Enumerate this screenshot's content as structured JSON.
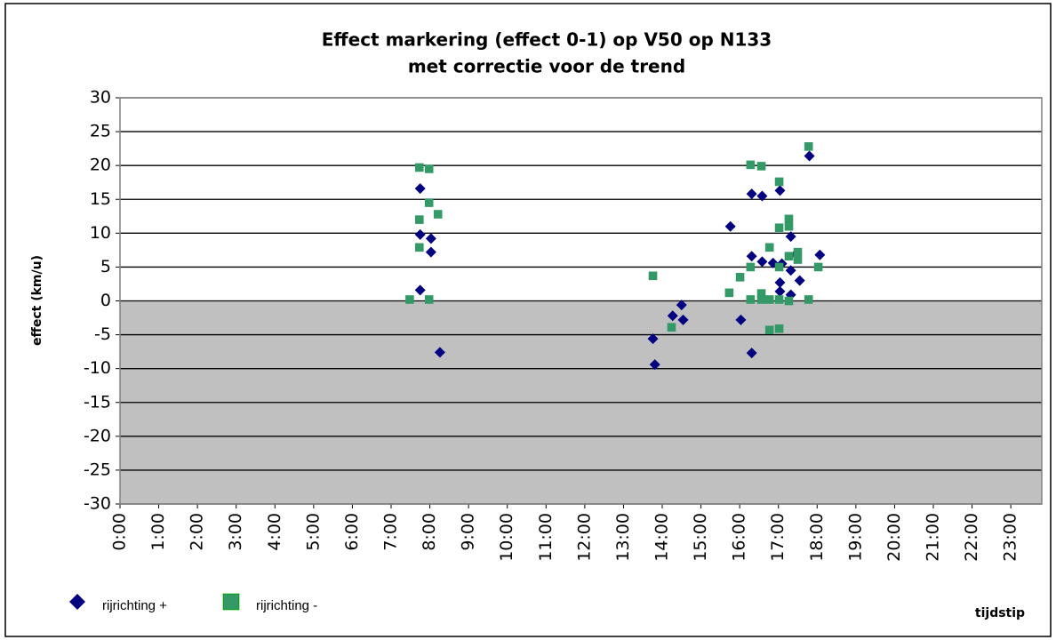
{
  "chart_data": {
    "type": "scatter",
    "title": [
      "Effect markering (effect 0-1) op V50 op N133",
      "met correctie voor de trend"
    ],
    "y_label": "effect (km/u)",
    "x_label": "tijdstip",
    "xlim": [
      0,
      23.8
    ],
    "ylim": [
      -30,
      30
    ],
    "yticks": [
      -30,
      -25,
      -20,
      -15,
      -10,
      -5,
      0,
      5,
      10,
      15,
      20,
      25,
      30
    ],
    "xticks": [
      {
        "value": 0,
        "label": "0:00"
      },
      {
        "value": 1,
        "label": "1:00"
      },
      {
        "value": 2,
        "label": "2:00"
      },
      {
        "value": 3,
        "label": "3:00"
      },
      {
        "value": 4,
        "label": "4:00"
      },
      {
        "value": 5,
        "label": "5:00"
      },
      {
        "value": 6,
        "label": "6:00"
      },
      {
        "value": 7,
        "label": "7:00"
      },
      {
        "value": 8,
        "label": "8:00"
      },
      {
        "value": 9,
        "label": "9:00"
      },
      {
        "value": 10,
        "label": "10:00"
      },
      {
        "value": 11,
        "label": "11:00"
      },
      {
        "value": 12,
        "label": "12:00"
      },
      {
        "value": 13,
        "label": "13:00"
      },
      {
        "value": 14,
        "label": "14:00"
      },
      {
        "value": 15,
        "label": "15:00"
      },
      {
        "value": 16,
        "label": "16:00"
      },
      {
        "value": 17,
        "label": "17:00"
      },
      {
        "value": 18,
        "label": "18:00"
      },
      {
        "value": 19,
        "label": "19:00"
      },
      {
        "value": 20,
        "label": "20:00"
      },
      {
        "value": 21,
        "label": "21:00"
      },
      {
        "value": 22,
        "label": "22:00"
      },
      {
        "value": 23,
        "label": "23:00"
      }
    ],
    "grid": true,
    "series": [
      {
        "name": "rijrichting +",
        "color": "#000080",
        "marker": "diamond",
        "x": [
          7.75,
          7.75,
          8.03,
          8.03,
          7.75,
          8.26,
          13.76,
          13.81,
          14.27,
          14.54,
          14.5,
          15.76,
          16.03,
          16.31,
          16.58,
          16.31,
          16.31,
          16.58,
          16.86,
          17.09,
          17.04,
          17.04,
          17.04,
          17.32,
          17.32,
          17.32,
          17.55,
          17.45,
          17.8,
          18.07
        ],
        "values": [
          16.6,
          9.8,
          9.2,
          7.2,
          1.6,
          -7.6,
          -5.6,
          -9.4,
          -2.2,
          -2.8,
          -0.6,
          11,
          -2.8,
          15.8,
          15.5,
          6.6,
          -7.7,
          5.8,
          5.6,
          5.5,
          16.3,
          2.7,
          1.4,
          9.5,
          4.5,
          0.9,
          3.0,
          6.9,
          21.4,
          6.8
        ]
      },
      {
        "name": "rijrichting -",
        "color": "#339966",
        "marker": "square",
        "x": [
          7.48,
          7.73,
          7.73,
          7.73,
          7.98,
          7.98,
          7.98,
          8.21,
          13.76,
          14.24,
          15.73,
          16.01,
          16.28,
          16.28,
          16.28,
          16.56,
          16.56,
          16.56,
          16.77,
          16.77,
          16.77,
          17.02,
          17.02,
          17.02,
          17.02,
          17.02,
          17.27,
          17.27,
          17.27,
          17.27,
          17.5,
          17.5,
          17.78,
          17.78,
          18.03
        ],
        "values": [
          0.2,
          19.7,
          12.0,
          7.9,
          19.5,
          14.5,
          0.2,
          12.8,
          3.7,
          -3.9,
          1.2,
          3.5,
          20.1,
          5.0,
          0.2,
          19.9,
          1.1,
          0.2,
          7.9,
          -4.3,
          0.2,
          17.6,
          10.8,
          5.0,
          0.2,
          -4.1,
          12.1,
          11.0,
          6.6,
          0.0,
          7.2,
          6.1,
          22.8,
          0.2,
          5.0
        ]
      }
    ]
  }
}
